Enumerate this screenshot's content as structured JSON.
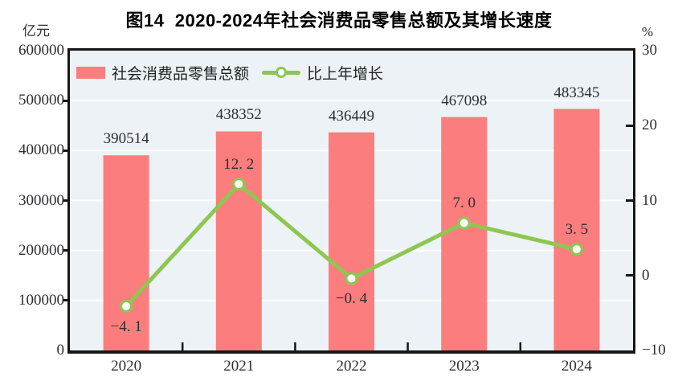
{
  "title": "图14  2020-2024年社会消费品零售总额及其增长速度",
  "axes": {
    "left_unit": "亿元",
    "right_unit": "%",
    "left_ticks": [
      "600000",
      "500000",
      "400000",
      "300000",
      "200000",
      "100000",
      "0"
    ],
    "right_ticks": [
      "30",
      "20",
      "10",
      "0",
      "−10"
    ]
  },
  "legend": {
    "bar_label": "社会消费品零售总额",
    "line_label": "比上年增长"
  },
  "chart_data": {
    "type": "bar",
    "categories": [
      "2020",
      "2021",
      "2022",
      "2023",
      "2024"
    ],
    "series": [
      {
        "name": "社会消费品零售总额",
        "type": "bar",
        "axis": "left",
        "values": [
          390514,
          438352,
          436449,
          467098,
          483345
        ],
        "labels": [
          "390514",
          "438352",
          "436449",
          "467098",
          "483345"
        ]
      },
      {
        "name": "比上年增长",
        "type": "line",
        "axis": "right",
        "values": [
          -4.1,
          12.2,
          -0.4,
          7.0,
          3.5
        ],
        "labels": [
          "−4. 1",
          "12. 2",
          "−0. 4",
          "7. 0",
          "3. 5"
        ],
        "label_position": [
          "below",
          "above",
          "below",
          "above",
          "above"
        ]
      }
    ],
    "left_axis": {
      "unit": "亿元",
      "min": 0,
      "max": 600000,
      "step": 100000
    },
    "right_axis": {
      "unit": "%",
      "min": -10,
      "max": 30,
      "step": 10
    },
    "grid": "horizontal-white-behind-bars",
    "legend_position": "top-left-inside"
  },
  "colors": {
    "bar": "#FB7D7D",
    "line": "#8DC751",
    "marker_fill": "#FFFFFF",
    "plot_background": "#ECF2F5",
    "gridline": "#FFFFFF",
    "axis": "#161616",
    "text": "#2e2e33",
    "title": "#000000"
  }
}
